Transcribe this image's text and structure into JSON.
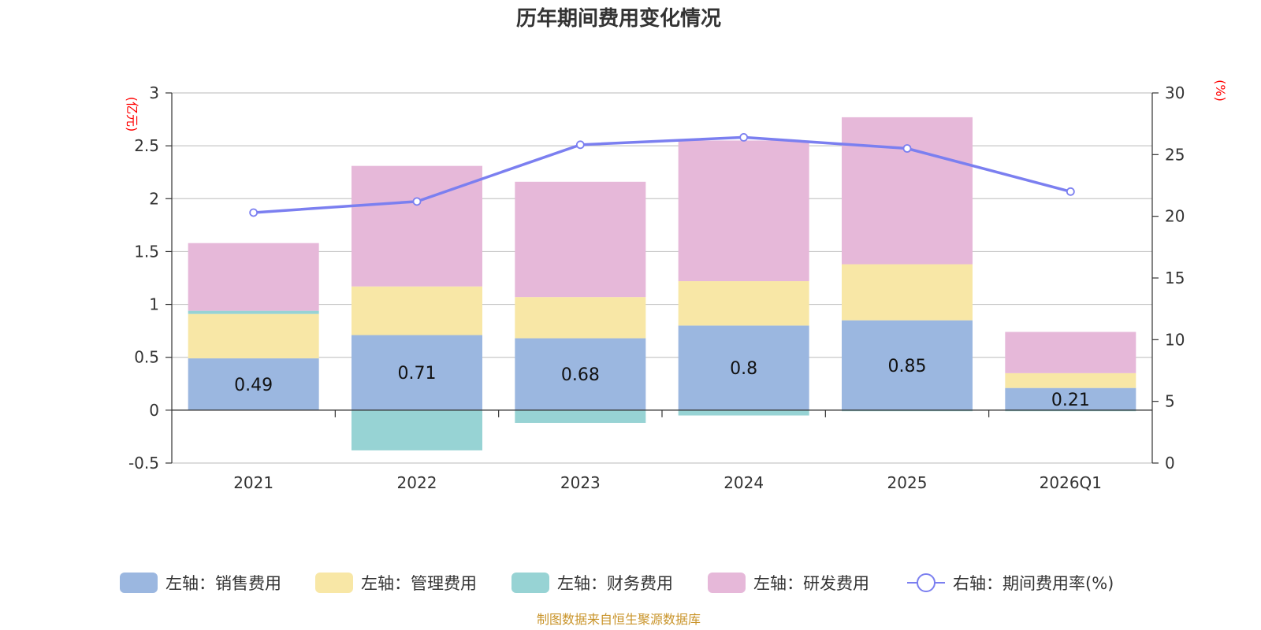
{
  "chart_data": {
    "type": "bar",
    "title": "历年期间费用变化情况",
    "categories": [
      "2021",
      "2022",
      "2023",
      "2024",
      "2025",
      "2026Q1"
    ],
    "left_axis": {
      "unit": "(亿元)",
      "ylim": [
        -0.5,
        3
      ],
      "ticks": [
        "-0.5",
        "0",
        "0.5",
        "1",
        "1.5",
        "2",
        "2.5",
        "3"
      ],
      "tick_values": [
        -0.5,
        0,
        0.5,
        1,
        1.5,
        2,
        2.5,
        3
      ]
    },
    "right_axis": {
      "unit": "(%)",
      "ylim": [
        0,
        30
      ],
      "ticks": [
        "0",
        "5",
        "10",
        "15",
        "20",
        "25",
        "30"
      ],
      "tick_values": [
        0,
        5,
        10,
        15,
        20,
        25,
        30
      ]
    },
    "series": [
      {
        "name": "左轴：销售费用",
        "color": "#9bb7e0",
        "values": [
          0.49,
          0.71,
          0.68,
          0.8,
          0.85,
          0.21
        ],
        "data_labels": [
          "0.49",
          "0.71",
          "0.68",
          "0.8",
          "0.85",
          "0.21"
        ]
      },
      {
        "name": "左轴：管理费用",
        "color": "#f8e7a6",
        "values": [
          0.42,
          0.46,
          0.39,
          0.42,
          0.53,
          0.14
        ]
      },
      {
        "name": "左轴：财务费用",
        "color": "#97d3d4",
        "values": [
          0.03,
          -0.38,
          -0.12,
          -0.05,
          -0.01,
          -0.01
        ]
      },
      {
        "name": "左轴：研发费用",
        "color": "#e6b8d9",
        "values": [
          0.64,
          1.14,
          1.09,
          1.33,
          1.39,
          0.39
        ]
      }
    ],
    "line_series": {
      "name": "右轴：期间费用率(%)",
      "color": "#7b7ff0",
      "axis": "right",
      "values": [
        20.3,
        21.2,
        25.8,
        26.4,
        25.5,
        22.0
      ]
    },
    "legend_position": "bottom-center"
  },
  "source_note": "制图数据来自恒生聚源数据库"
}
